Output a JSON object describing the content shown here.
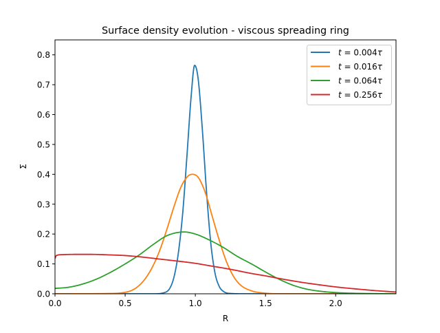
{
  "chart_data": {
    "type": "line",
    "title": "Surface density evolution - viscous spreading ring",
    "xlabel": "R",
    "ylabel": "Σ",
    "xlim": [
      0.0,
      2.43
    ],
    "ylim": [
      0.0,
      0.85
    ],
    "xticks": [
      "0.0",
      "0.5",
      "1.0",
      "1.5",
      "2.0"
    ],
    "xtick_values": [
      0.0,
      0.5,
      1.0,
      1.5,
      2.0
    ],
    "yticks": [
      "0.0",
      "0.1",
      "0.2",
      "0.3",
      "0.4",
      "0.5",
      "0.6",
      "0.7",
      "0.8"
    ],
    "ytick_values": [
      0.0,
      0.1,
      0.2,
      0.3,
      0.4,
      0.5,
      0.6,
      0.7,
      0.8
    ],
    "grid": false,
    "legend_position": "top-right",
    "series": [
      {
        "name": "t = 0.004τ",
        "label_var": "t",
        "label_value": "0.004τ",
        "color": "#1f77b4",
        "x": [
          0.0,
          0.7,
          0.78,
          0.82,
          0.85,
          0.88,
          0.91,
          0.94,
          0.97,
          0.995,
          1.02,
          1.05,
          1.08,
          1.11,
          1.14,
          1.17,
          1.2,
          1.25,
          1.35,
          2.43
        ],
        "y": [
          0.0,
          0.0,
          0.004,
          0.02,
          0.06,
          0.14,
          0.27,
          0.46,
          0.66,
          0.765,
          0.72,
          0.55,
          0.34,
          0.17,
          0.07,
          0.025,
          0.008,
          0.001,
          0.0,
          0.0
        ]
      },
      {
        "name": "t = 0.016τ",
        "label_var": "t",
        "label_value": "0.016τ",
        "color": "#ff7f0e",
        "x": [
          0.0,
          0.4,
          0.5,
          0.55,
          0.6,
          0.65,
          0.7,
          0.75,
          0.8,
          0.85,
          0.9,
          0.95,
          0.98,
          1.02,
          1.07,
          1.12,
          1.17,
          1.22,
          1.27,
          1.32,
          1.4,
          1.5,
          1.6,
          2.43
        ],
        "y": [
          0.0,
          0.001,
          0.005,
          0.012,
          0.028,
          0.055,
          0.095,
          0.15,
          0.22,
          0.295,
          0.36,
          0.395,
          0.4,
          0.39,
          0.34,
          0.26,
          0.18,
          0.11,
          0.06,
          0.03,
          0.01,
          0.002,
          0.0,
          0.0
        ]
      },
      {
        "name": "t = 0.064τ",
        "label_var": "t",
        "label_value": "0.064τ",
        "color": "#2ca02c",
        "x": [
          0.0,
          0.1,
          0.2,
          0.3,
          0.4,
          0.5,
          0.6,
          0.7,
          0.8,
          0.92,
          1.0,
          1.1,
          1.2,
          1.3,
          1.4,
          1.5,
          1.6,
          1.7,
          1.8,
          1.9,
          2.0,
          2.2,
          2.43
        ],
        "y": [
          0.018,
          0.022,
          0.033,
          0.05,
          0.073,
          0.1,
          0.13,
          0.165,
          0.195,
          0.207,
          0.2,
          0.18,
          0.155,
          0.125,
          0.1,
          0.073,
          0.048,
          0.028,
          0.015,
          0.008,
          0.004,
          0.001,
          0.0
        ]
      },
      {
        "name": "t = 0.256τ",
        "label_var": "t",
        "label_value": "0.256τ",
        "color": "#d62728",
        "x": [
          0.0,
          0.01,
          0.05,
          0.15,
          0.25,
          0.4,
          0.5,
          0.6,
          0.75,
          0.9,
          1.0,
          1.1,
          1.25,
          1.4,
          1.5,
          1.6,
          1.75,
          1.9,
          2.0,
          2.15,
          2.3,
          2.43
        ],
        "y": [
          0.118,
          0.128,
          0.131,
          0.132,
          0.132,
          0.13,
          0.128,
          0.124,
          0.116,
          0.108,
          0.102,
          0.094,
          0.082,
          0.068,
          0.06,
          0.051,
          0.039,
          0.029,
          0.023,
          0.016,
          0.01,
          0.006
        ]
      }
    ]
  }
}
